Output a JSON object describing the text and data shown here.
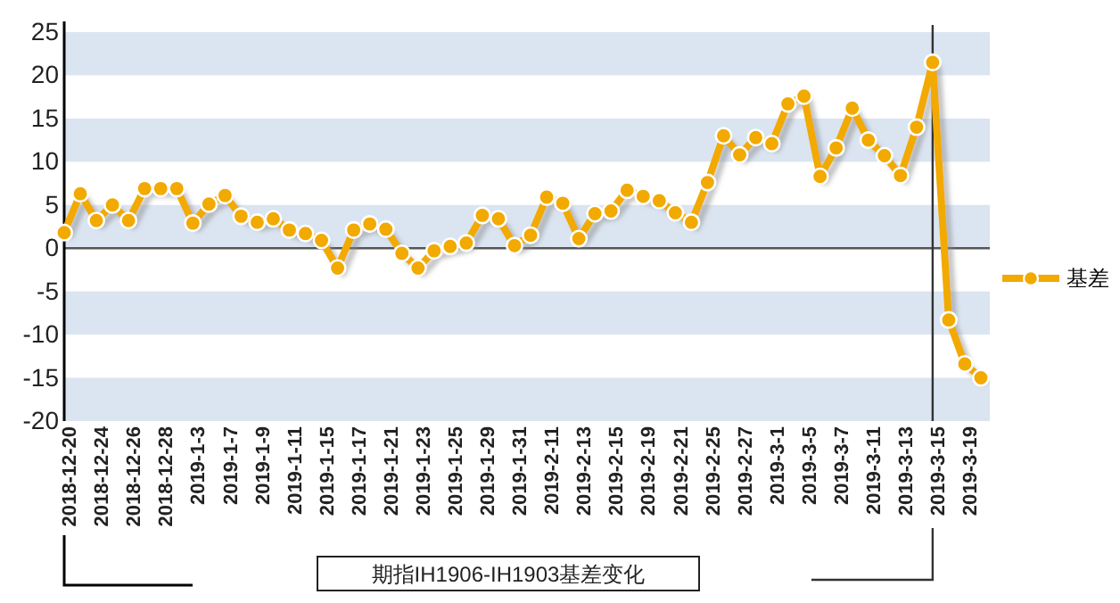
{
  "chart_data": {
    "type": "line",
    "xlabel": "期指IH1906-IH1903基差变化",
    "categories": [
      "2018-12-20",
      null,
      "2018-12-24",
      null,
      "2018-12-26",
      null,
      "2018-12-28",
      null,
      "2019-1-3",
      null,
      "2019-1-7",
      null,
      "2019-1-9",
      null,
      "2019-1-11",
      null,
      "2019-1-15",
      null,
      "2019-1-17",
      null,
      "2019-1-21",
      null,
      "2019-1-23",
      null,
      "2019-1-25",
      null,
      "2019-1-29",
      null,
      "2019-1-31",
      null,
      "2019-2-11",
      null,
      "2019-2-13",
      null,
      "2019-2-15",
      null,
      "2019-2-19",
      null,
      "2019-2-21",
      null,
      "2019-2-25",
      null,
      "2019-2-27",
      null,
      "2019-3-1",
      null,
      "2019-3-5",
      null,
      "2019-3-7",
      null,
      "2019-3-11",
      null,
      "2019-3-13",
      null,
      "2019-3-15",
      null,
      "2019-3-19",
      null
    ],
    "series": [
      {
        "name": "基差",
        "color": "#f2a900",
        "values": [
          1.8,
          6.3,
          3.2,
          5.0,
          3.2,
          6.9,
          6.9,
          6.9,
          2.9,
          5.1,
          6.1,
          3.7,
          3.0,
          3.4,
          2.1,
          1.7,
          0.9,
          -2.3,
          2.1,
          2.8,
          2.2,
          -0.6,
          -2.3,
          -0.3,
          0.2,
          0.6,
          3.8,
          3.4,
          0.3,
          1.5,
          5.9,
          5.2,
          1.1,
          4.0,
          4.3,
          6.7,
          6.0,
          5.5,
          4.1,
          3.0,
          7.6,
          13.0,
          10.8,
          12.8,
          12.1,
          16.7,
          17.6,
          8.3,
          11.6,
          16.2,
          12.5,
          10.7,
          8.4,
          14.0,
          21.5,
          -8.3,
          -13.4,
          -15.0
        ]
      }
    ],
    "ylim": [
      -20,
      25
    ],
    "yticks": [
      -20,
      -15,
      -10,
      -5,
      0,
      5,
      10,
      15,
      20,
      25
    ],
    "legend": "right",
    "marker": "circle",
    "line_style": "solid",
    "ref_lines": [
      {
        "axis": "x",
        "value": "2019-3-15",
        "color": "#333333"
      }
    ]
  }
}
